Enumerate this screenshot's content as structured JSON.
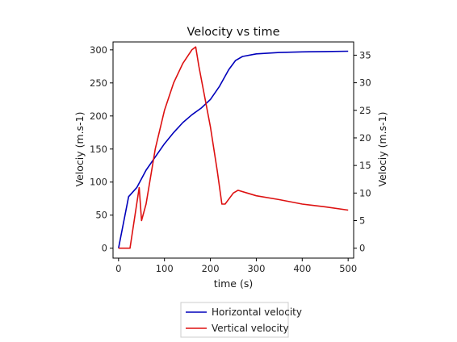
{
  "chart_data": {
    "type": "line",
    "title": "Velocity vs time",
    "xlabel": "time (s)",
    "ylabel_left": "Velociy (m.s-1)",
    "ylabel_right": "Velociy (m.s-1)",
    "xlim": [
      -12,
      512
    ],
    "ylim_left": [
      -15,
      312
    ],
    "ylim_right": [
      -1.8,
      37.4
    ],
    "x_ticks": [
      0,
      100,
      200,
      300,
      400,
      500
    ],
    "y_ticks_left": [
      0,
      50,
      100,
      150,
      200,
      250,
      300
    ],
    "y_ticks_right": [
      0,
      5,
      10,
      15,
      20,
      25,
      30,
      35
    ],
    "grid": false,
    "legend_position": "bottom-center, outside plot",
    "series": [
      {
        "name": "Horizontal velocity",
        "axis": "left",
        "color": "#0000bb",
        "points": [
          [
            0,
            0
          ],
          [
            22,
            78
          ],
          [
            40,
            92
          ],
          [
            60,
            118
          ],
          [
            80,
            138
          ],
          [
            100,
            158
          ],
          [
            120,
            175
          ],
          [
            140,
            190
          ],
          [
            160,
            202
          ],
          [
            180,
            212
          ],
          [
            200,
            225
          ],
          [
            220,
            245
          ],
          [
            240,
            270
          ],
          [
            255,
            284
          ],
          [
            270,
            290
          ],
          [
            300,
            294
          ],
          [
            350,
            296
          ],
          [
            400,
            297
          ],
          [
            450,
            297.5
          ],
          [
            500,
            298
          ]
        ]
      },
      {
        "name": "Vertical velocity",
        "axis": "right",
        "color": "#dd1111",
        "points": [
          [
            0,
            0
          ],
          [
            25,
            0
          ],
          [
            45,
            11
          ],
          [
            50,
            5
          ],
          [
            60,
            8
          ],
          [
            80,
            18
          ],
          [
            100,
            25
          ],
          [
            120,
            30
          ],
          [
            140,
            33.5
          ],
          [
            160,
            36
          ],
          [
            168,
            36.5
          ],
          [
            175,
            33
          ],
          [
            200,
            22
          ],
          [
            215,
            14
          ],
          [
            225,
            8
          ],
          [
            232,
            8
          ],
          [
            250,
            10
          ],
          [
            260,
            10.5
          ],
          [
            280,
            10
          ],
          [
            300,
            9.5
          ],
          [
            350,
            8.8
          ],
          [
            400,
            8
          ],
          [
            450,
            7.5
          ],
          [
            500,
            6.9
          ]
        ]
      }
    ]
  }
}
